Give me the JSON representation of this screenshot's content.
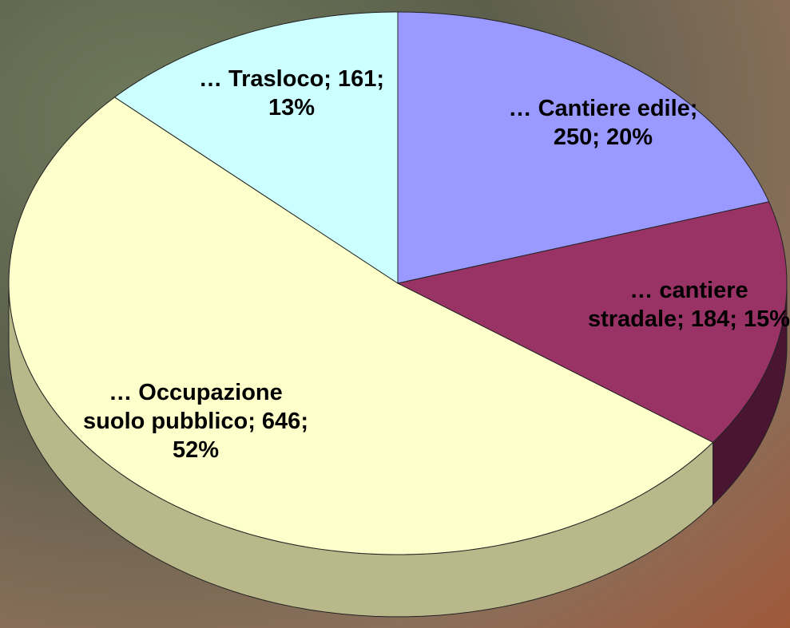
{
  "chart_data": {
    "type": "pie3d",
    "values": [
      250,
      184,
      646,
      161
    ],
    "value_labels": [
      "… Cantiere edile; 250; 20%",
      "… cantiere stradale; 184; 15%",
      "… Occupazione suolo pubblico; 646; 52%",
      "… Trasloco; 161; 13%"
    ],
    "colors": [
      "#9999ff",
      "#993366",
      "#ffffcc",
      "#ccffff"
    ],
    "side_colors": [
      "#5c5c99",
      "#4a1530",
      "#b8b88a",
      "#8fb3b3"
    ],
    "start_angle": 0,
    "direction": "clockwise"
  }
}
